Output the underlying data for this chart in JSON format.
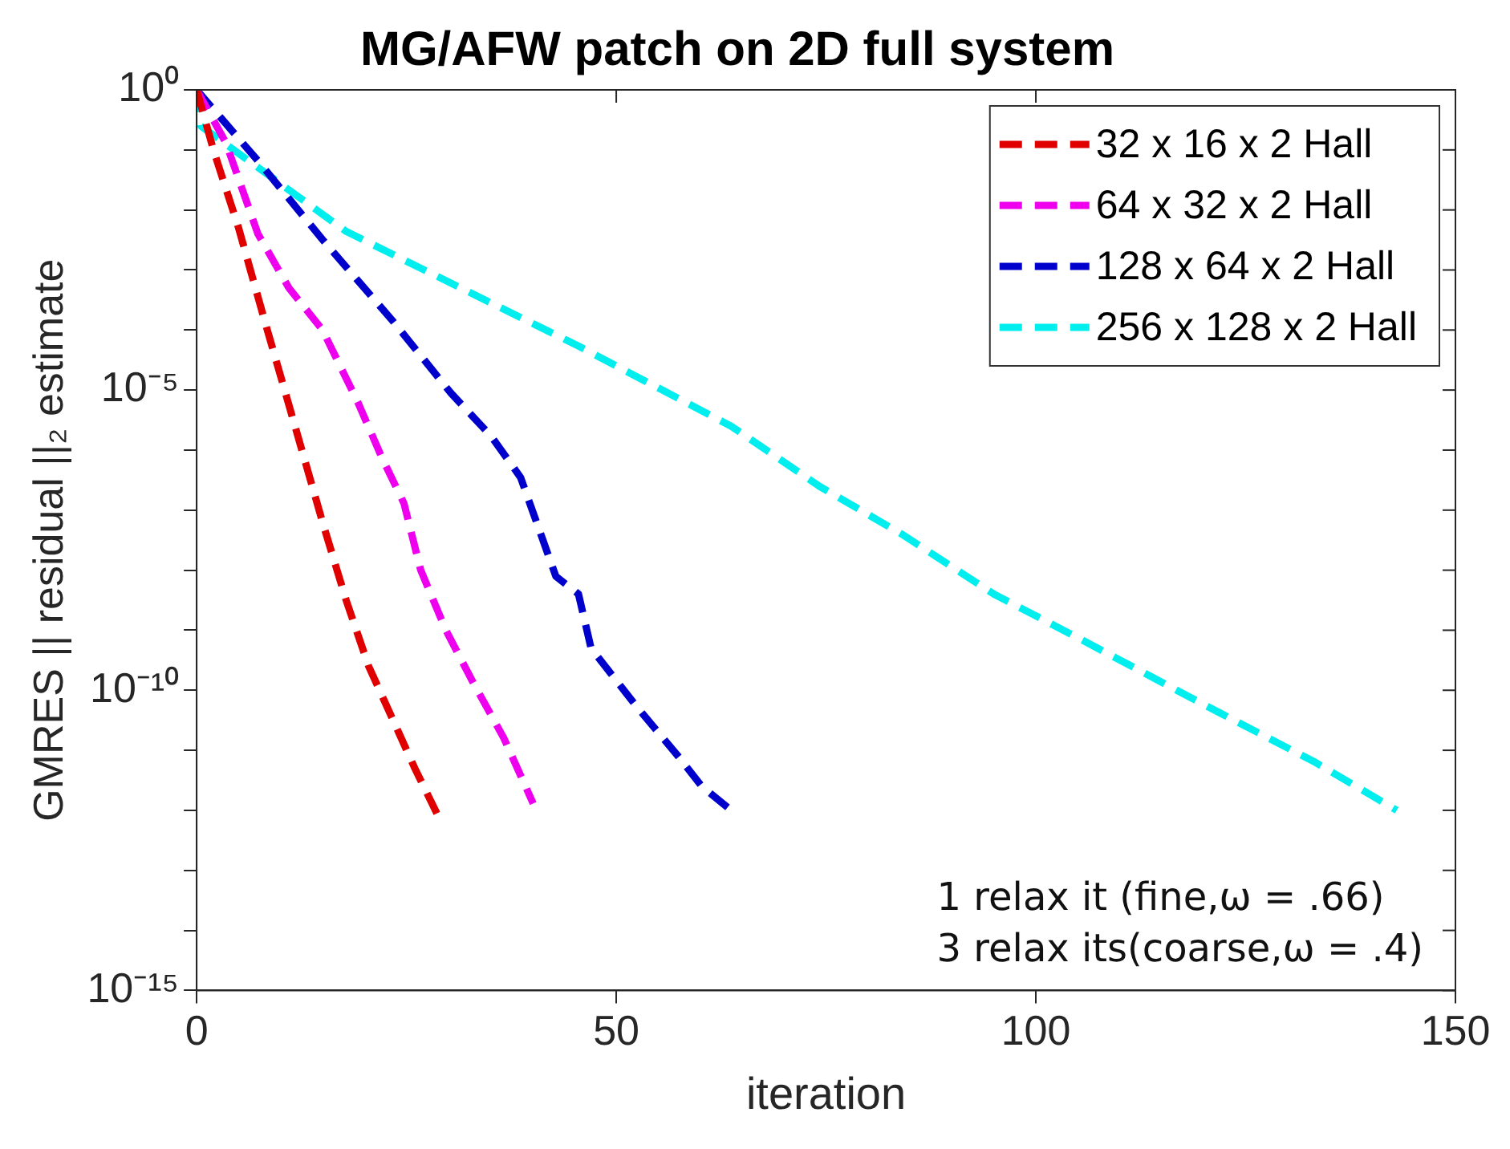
{
  "chart_data": {
    "type": "line",
    "title": "MG/AFW patch on 2D full system",
    "xlabel": "iteration",
    "ylabel": "GMRES || residual ||₂ estimate",
    "log": "y",
    "xlim": [
      0,
      150
    ],
    "xticks": [
      0,
      50,
      100,
      150
    ],
    "ylim": [
      1e-15,
      1
    ],
    "yticks": [
      {
        "value": 1,
        "label": "10⁰"
      },
      {
        "value": 0.1,
        "label": null
      },
      {
        "value": 0.01,
        "label": null
      },
      {
        "value": 0.001,
        "label": null
      },
      {
        "value": 0.0001,
        "label": null
      },
      {
        "value": 1e-05,
        "label": "10⁻⁵"
      },
      {
        "value": 1e-06,
        "label": null
      },
      {
        "value": 1e-07,
        "label": null
      },
      {
        "value": 1e-08,
        "label": null
      },
      {
        "value": 1e-09,
        "label": null
      },
      {
        "value": 1e-10,
        "label": "10⁻¹⁰"
      },
      {
        "value": 1e-11,
        "label": null
      },
      {
        "value": 1e-12,
        "label": null
      },
      {
        "value": 1e-13,
        "label": null
      },
      {
        "value": 1e-14,
        "label": null
      },
      {
        "value": 1e-15,
        "label": "10⁻¹⁵"
      }
    ],
    "grid": false,
    "legend": "top right",
    "marker": "none",
    "line_style": "dashed",
    "series": [
      {
        "name": "32 x 16 x 2 Hall",
        "color": "#e00000",
        "x": [
          0,
          2,
          5,
          8,
          11.5,
          15,
          17.8,
          20.5,
          23.4,
          26,
          28.8
        ],
        "values": [
          1,
          0.1,
          0.005,
          0.00016,
          3.2e-06,
          6.3e-08,
          3.2e-09,
          2.5e-10,
          3.2e-11,
          5e-12,
          7.9e-13
        ]
      },
      {
        "name": "64 x 32 x 2 Hall",
        "color": "#ee00ee",
        "x": [
          0,
          3.5,
          7.3,
          11,
          15,
          19.2,
          22,
          24.7,
          26.7,
          29.7,
          33,
          36.6,
          40.1
        ],
        "values": [
          1,
          0.13,
          0.004,
          0.0005,
          0.0001,
          6.3e-06,
          7.9e-07,
          1.3e-07,
          1e-08,
          1e-09,
          1.3e-10,
          1.6e-11,
          1.3e-12
        ]
      },
      {
        "name": "128 x 64 x 2 Hall",
        "color": "#0000cc",
        "x": [
          0,
          7.3,
          15,
          23.4,
          30.3,
          35.1,
          38.6,
          42.8,
          45.5,
          47,
          52.6,
          57.4,
          60.2,
          63.7
        ],
        "values": [
          1,
          0.066,
          0.0032,
          0.00014,
          8.9e-06,
          1.7e-06,
          3.5e-07,
          7.9e-09,
          4e-09,
          5e-10,
          5e-11,
          7.9e-12,
          2.5e-12,
          1e-12
        ]
      },
      {
        "name": "256 x 128 x 2 Hall",
        "color": "#00eeee",
        "x": [
          0,
          0.5,
          17.8,
          45.5,
          63.7,
          74.2,
          84,
          95,
          105.5,
          119.5,
          133.3,
          143
        ],
        "values": [
          1,
          0.25,
          0.0044,
          5.4e-05,
          2.5e-06,
          2.5e-07,
          4e-08,
          4e-09,
          6.9e-10,
          6.3e-11,
          6.3e-12,
          1e-12
        ]
      }
    ],
    "annotations": [
      "1 relax it (fine,ω = .66)",
      "3 relax its(coarse,ω = .4)"
    ]
  }
}
